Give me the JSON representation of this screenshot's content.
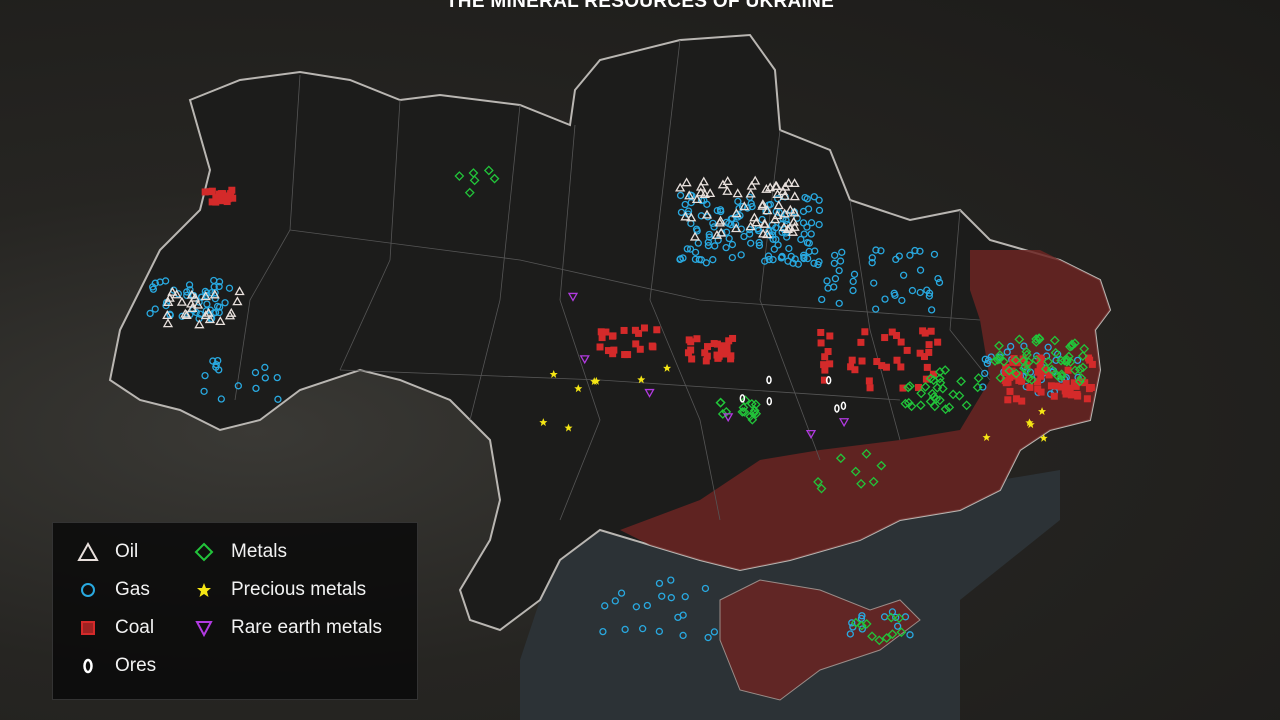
{
  "title": "THE MINERAL RESOURCES OF UKRAINE",
  "legend": {
    "items": [
      {
        "label": "Oil",
        "icon": "triangle-outline",
        "color": "#e8e0dc"
      },
      {
        "label": "Gas",
        "icon": "circle-outline",
        "color": "#29a9e0"
      },
      {
        "label": "Coal",
        "icon": "square-filled",
        "color": "#d42a2a"
      },
      {
        "label": "Ores",
        "icon": "oval-outline",
        "color": "#ffffff"
      },
      {
        "label": "Metals",
        "icon": "diamond-outline",
        "color": "#22c43a"
      },
      {
        "label": "Precious metals",
        "icon": "star-filled",
        "color": "#f5e614"
      },
      {
        "label": "Rare earth metals",
        "icon": "inverted-triangle-outline",
        "color": "#b13ae0"
      }
    ]
  },
  "colors": {
    "occupied": "#6b2422",
    "sea": "#2c3236",
    "border": "#b9b6b2"
  }
}
